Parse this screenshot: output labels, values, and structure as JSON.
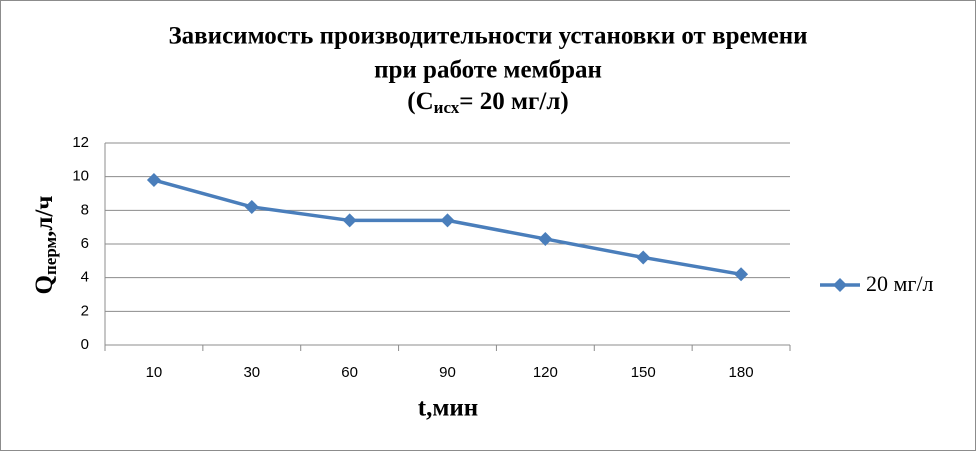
{
  "chart_data": {
    "type": "line",
    "title_lines": [
      "Зависимость производительности установки от времени",
      "при работе мембран"
    ],
    "title_formula": {
      "base": "(С",
      "sub": "исх",
      "rest": "= 20 мг/л)"
    },
    "x_label": "t,мин",
    "y_label": {
      "base": "Q",
      "sub": "перм",
      "rest": ",л/ч"
    },
    "categories": [
      "10",
      "30",
      "60",
      "90",
      "120",
      "150",
      "180"
    ],
    "series": [
      {
        "name": "20 мг/л",
        "color": "#4a7ebb",
        "values": [
          9.8,
          8.2,
          7.4,
          7.4,
          6.3,
          5.2,
          4.2
        ]
      }
    ],
    "ylim": [
      0,
      12
    ],
    "yticks": [
      0,
      2,
      4,
      6,
      8,
      10,
      12
    ],
    "grid": true,
    "legend": "right"
  }
}
